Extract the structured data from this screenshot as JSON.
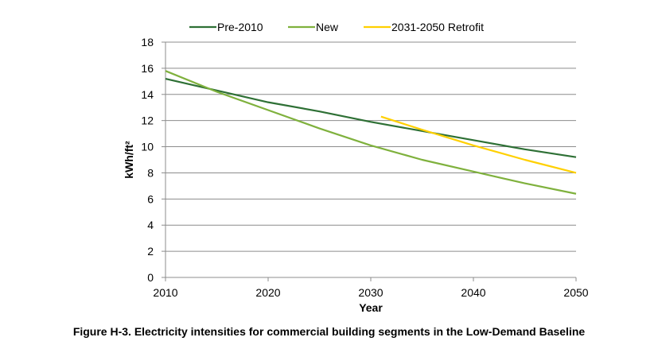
{
  "chart_data": {
    "type": "line",
    "title": "",
    "xlabel": "Year",
    "ylabel": "kWh/ft²",
    "xlim": [
      2010,
      2050
    ],
    "ylim": [
      0,
      18
    ],
    "x_ticks": [
      2010,
      2020,
      2030,
      2040,
      2050
    ],
    "y_ticks": [
      0,
      2,
      4,
      6,
      8,
      10,
      12,
      14,
      16,
      18
    ],
    "grid": "horizontal",
    "legend_position": "top",
    "series": [
      {
        "name": "Pre-2010",
        "color": "#2e7035",
        "x": [
          2010,
          2015,
          2020,
          2025,
          2030,
          2035,
          2040,
          2045,
          2050
        ],
        "y": [
          15.2,
          14.3,
          13.4,
          12.7,
          11.9,
          11.2,
          10.5,
          9.8,
          9.2
        ]
      },
      {
        "name": "New",
        "color": "#7fb13d",
        "x": [
          2010,
          2015,
          2020,
          2025,
          2030,
          2035,
          2040,
          2045,
          2050
        ],
        "y": [
          15.8,
          14.2,
          12.8,
          11.4,
          10.1,
          9.0,
          8.1,
          7.2,
          6.4
        ]
      },
      {
        "name": "2031-2050 Retrofit",
        "color": "#ffd000",
        "x": [
          2031,
          2035,
          2040,
          2045,
          2050
        ],
        "y": [
          12.3,
          11.3,
          10.1,
          9.0,
          8.0
        ]
      }
    ]
  },
  "caption": "Figure H-3. Electricity intensities for commercial building segments in the Low-Demand Baseline"
}
